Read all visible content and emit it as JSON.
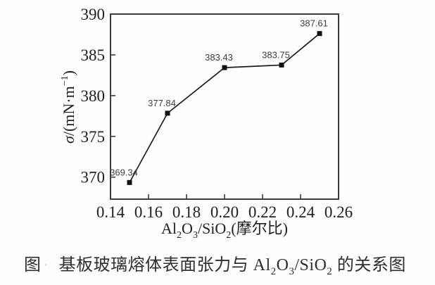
{
  "figure": {
    "caption": {
      "fig_label": "图",
      "faint_mark": "·",
      "parts": {
        "p0": "基板玻璃熔体表面张力与 Al",
        "p1": "2",
        "p2": "O",
        "p3": "3",
        "p4": "/SiO",
        "p5": "2",
        "p6": " 的关系图"
      }
    }
  },
  "chart_data": {
    "type": "line",
    "x": [
      0.15,
      0.17,
      0.2,
      0.23,
      0.25
    ],
    "y": [
      369.34,
      377.84,
      383.43,
      383.75,
      387.61
    ],
    "point_labels": [
      "369.34",
      "377.84",
      "383.43",
      "383.75",
      "387.61"
    ],
    "xlim": [
      0.14,
      0.26
    ],
    "ylim": [
      367.3,
      390
    ],
    "xticks": {
      "values": [
        0.14,
        0.16,
        0.18,
        0.2,
        0.22,
        0.24,
        0.26
      ],
      "labels": [
        "0.14",
        "0.16",
        "0.18",
        "0.20",
        "0.22",
        "0.24",
        "0.26"
      ]
    },
    "yticks": {
      "values": [
        370,
        375,
        380,
        385,
        390
      ],
      "labels": [
        "370",
        "375",
        "380",
        "385",
        "390"
      ]
    },
    "xlabel_parts": [
      {
        "t": "Al"
      },
      {
        "t": "2",
        "sub": true
      },
      {
        "t": "O"
      },
      {
        "t": "3",
        "sub": true
      },
      {
        "t": "/SiO"
      },
      {
        "t": "2",
        "sub": true
      },
      {
        "t": "(摩尔比)"
      }
    ],
    "ylabel_parts": [
      {
        "t": "σ",
        "italic": true
      },
      {
        "t": "/(mN·m"
      },
      {
        "t": "−1",
        "sup": true
      },
      {
        "t": ")"
      }
    ],
    "grid": false,
    "legend": null,
    "marker": "square",
    "colors": {
      "line": "#1c1c1c",
      "marker": "#111111",
      "axis": "#3c3c3c",
      "tick_text": "#1f1f1f",
      "point_label_text": "#3d3d3d"
    }
  }
}
